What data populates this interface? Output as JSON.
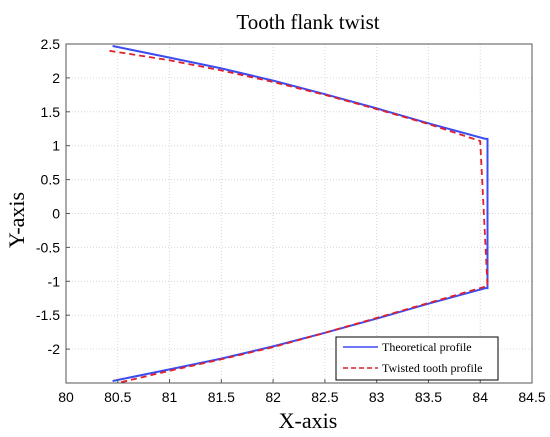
{
  "chart_data": {
    "type": "line",
    "title": "Tooth flank twist",
    "xlabel": "X-axis",
    "ylabel": "Y-axis",
    "xlim": [
      80,
      84.5
    ],
    "ylim": [
      -2.5,
      2.5
    ],
    "xticks": [
      "80",
      "80.5",
      "81",
      "81.5",
      "82",
      "82.5",
      "83",
      "83.5",
      "84",
      "84.5"
    ],
    "yticks": [
      "2.5",
      "2",
      "1.5",
      "1",
      "0.5",
      "0",
      "-0.5",
      "-1",
      "-1.5",
      "-2"
    ],
    "grid": true,
    "legend_position": "bottom-right",
    "series": [
      {
        "name": "Theoretical profile",
        "color": "#3b4cf0",
        "style": "solid",
        "x": [
          80.45,
          81.0,
          81.5,
          82.0,
          82.5,
          83.0,
          83.5,
          84.05,
          84.07,
          84.07,
          84.05,
          83.5,
          83.0,
          82.5,
          82.0,
          81.5,
          81.0,
          80.45
        ],
        "y": [
          2.47,
          2.3,
          2.14,
          1.96,
          1.76,
          1.55,
          1.33,
          1.1,
          1.1,
          -1.1,
          -1.1,
          -1.33,
          -1.55,
          -1.76,
          -1.96,
          -2.14,
          -2.3,
          -2.47
        ]
      },
      {
        "name": "Twisted tooth profile",
        "color": "#e0202a",
        "style": "dashed",
        "x": [
          80.42,
          81.0,
          81.5,
          82.0,
          82.5,
          83.0,
          83.5,
          84.0,
          84.0,
          84.07,
          84.07,
          83.5,
          83.0,
          82.5,
          82.0,
          81.5,
          81.0,
          80.5
        ],
        "y": [
          2.4,
          2.26,
          2.11,
          1.94,
          1.75,
          1.54,
          1.32,
          1.07,
          1.07,
          -1.07,
          -1.07,
          -1.32,
          -1.54,
          -1.76,
          -1.97,
          -2.15,
          -2.32,
          -2.5
        ]
      }
    ]
  }
}
